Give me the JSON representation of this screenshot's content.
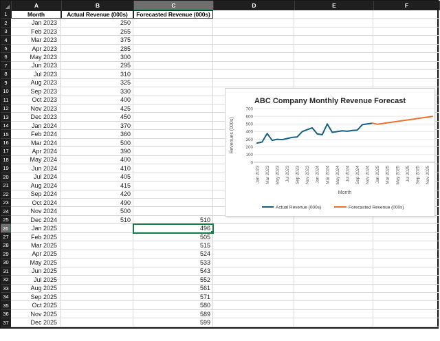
{
  "sheet": {
    "column_letters": [
      "A",
      "B",
      "C",
      "D",
      "E",
      "F"
    ],
    "header_row": {
      "month": "Month",
      "actual": "Actual Revenue (000s)",
      "forecast": "Forecasted Revenue (000s)"
    },
    "selection": {
      "cell": "C26",
      "row": 26,
      "col": "C",
      "value": "496"
    },
    "rows": [
      {
        "r": 2,
        "month": "Jan 2023",
        "actual": "250",
        "forecast": ""
      },
      {
        "r": 3,
        "month": "Feb 2023",
        "actual": "265",
        "forecast": ""
      },
      {
        "r": 4,
        "month": "Mar 2023",
        "actual": "375",
        "forecast": ""
      },
      {
        "r": 5,
        "month": "Apr 2023",
        "actual": "285",
        "forecast": ""
      },
      {
        "r": 6,
        "month": "May 2023",
        "actual": "300",
        "forecast": ""
      },
      {
        "r": 7,
        "month": "Jun 2023",
        "actual": "295",
        "forecast": ""
      },
      {
        "r": 8,
        "month": "Jul 2023",
        "actual": "310",
        "forecast": ""
      },
      {
        "r": 9,
        "month": "Aug 2023",
        "actual": "325",
        "forecast": ""
      },
      {
        "r": 10,
        "month": "Sep 2023",
        "actual": "330",
        "forecast": ""
      },
      {
        "r": 11,
        "month": "Oct 2023",
        "actual": "400",
        "forecast": ""
      },
      {
        "r": 12,
        "month": "Nov 2023",
        "actual": "425",
        "forecast": ""
      },
      {
        "r": 13,
        "month": "Dec 2023",
        "actual": "450",
        "forecast": ""
      },
      {
        "r": 14,
        "month": "Jan 2024",
        "actual": "370",
        "forecast": ""
      },
      {
        "r": 15,
        "month": "Feb 2024",
        "actual": "360",
        "forecast": ""
      },
      {
        "r": 16,
        "month": "Mar 2024",
        "actual": "500",
        "forecast": ""
      },
      {
        "r": 17,
        "month": "Apr 2024",
        "actual": "390",
        "forecast": ""
      },
      {
        "r": 18,
        "month": "May 2024",
        "actual": "400",
        "forecast": ""
      },
      {
        "r": 19,
        "month": "Jun 2024",
        "actual": "410",
        "forecast": ""
      },
      {
        "r": 20,
        "month": "Jul 2024",
        "actual": "405",
        "forecast": ""
      },
      {
        "r": 21,
        "month": "Aug 2024",
        "actual": "415",
        "forecast": ""
      },
      {
        "r": 22,
        "month": "Sep 2024",
        "actual": "420",
        "forecast": ""
      },
      {
        "r": 23,
        "month": "Oct 2024",
        "actual": "490",
        "forecast": ""
      },
      {
        "r": 24,
        "month": "Nov 2024",
        "actual": "500",
        "forecast": ""
      },
      {
        "r": 25,
        "month": "Dec 2024",
        "actual": "510",
        "forecast": "510"
      },
      {
        "r": 26,
        "month": "Jan 2025",
        "actual": "",
        "forecast": "496"
      },
      {
        "r": 27,
        "month": "Feb 2025",
        "actual": "",
        "forecast": "505"
      },
      {
        "r": 28,
        "month": "Mar 2025",
        "actual": "",
        "forecast": "515"
      },
      {
        "r": 29,
        "month": "Apr 2025",
        "actual": "",
        "forecast": "524"
      },
      {
        "r": 30,
        "month": "May 2025",
        "actual": "",
        "forecast": "533"
      },
      {
        "r": 31,
        "month": "Jun 2025",
        "actual": "",
        "forecast": "543"
      },
      {
        "r": 32,
        "month": "Jul 2025",
        "actual": "",
        "forecast": "552"
      },
      {
        "r": 33,
        "month": "Aug 2025",
        "actual": "",
        "forecast": "561"
      },
      {
        "r": 34,
        "month": "Sep 2025",
        "actual": "",
        "forecast": "571"
      },
      {
        "r": 35,
        "month": "Oct 2025",
        "actual": "",
        "forecast": "580"
      },
      {
        "r": 36,
        "month": "Nov 2025",
        "actual": "",
        "forecast": "589"
      },
      {
        "r": 37,
        "month": "Dec 2025",
        "actual": "",
        "forecast": "599"
      }
    ]
  },
  "chart_data": {
    "type": "line",
    "title": "ABC Company Monthly Revenue Forecast",
    "xlabel": "Month",
    "ylabel": "Revenues (000s)",
    "ylim": [
      0,
      700
    ],
    "ytick_step": 100,
    "xtick_interval": 2,
    "grid": "horizontal",
    "legend_position": "bottom",
    "categories": [
      "Jan 2023",
      "Feb 2023",
      "Mar 2023",
      "Apr 2023",
      "May 2023",
      "Jun 2023",
      "Jul 2023",
      "Aug 2023",
      "Sep 2023",
      "Oct 2023",
      "Nov 2023",
      "Dec 2023",
      "Jan 2024",
      "Feb 2024",
      "Mar 2024",
      "Apr 2024",
      "May 2024",
      "Jun 2024",
      "Jul 2024",
      "Aug 2024",
      "Sep 2024",
      "Oct 2024",
      "Nov 2024",
      "Dec 2024",
      "Jan 2025",
      "Feb 2025",
      "Mar 2025",
      "Apr 2025",
      "May 2025",
      "Jun 2025",
      "Jul 2025",
      "Aug 2025",
      "Sep 2025",
      "Oct 2025",
      "Nov 2025",
      "Dec 2025"
    ],
    "series": [
      {
        "name": "Actual Revenue (000s)",
        "color": "#156082",
        "start_index": 0,
        "values": [
          250,
          265,
          375,
          285,
          300,
          295,
          310,
          325,
          330,
          400,
          425,
          450,
          370,
          360,
          500,
          390,
          400,
          410,
          405,
          415,
          420,
          490,
          500,
          510
        ]
      },
      {
        "name": "Forecasted Revenue (000s)",
        "color": "#E97132",
        "start_index": 23,
        "values": [
          510,
          496,
          505,
          515,
          524,
          533,
          543,
          552,
          561,
          571,
          580,
          589,
          599
        ]
      }
    ],
    "axis_color": "#595959",
    "gridline_color": "#e8e8e8"
  }
}
